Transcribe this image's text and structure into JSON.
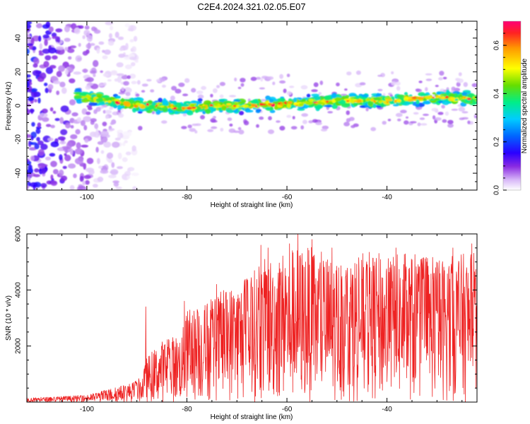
{
  "title": "C2E4.2024.321.02.05.E07",
  "chart_data": [
    {
      "type": "heatmap",
      "xlabel": "Height of straight line (km)",
      "ylabel": "Frequency (Hz)",
      "xlim": [
        -112,
        -22
      ],
      "ylim": [
        -50,
        50
      ],
      "xticks": [
        -100,
        -80,
        -60,
        -40
      ],
      "yticks": [
        -40,
        -20,
        0,
        20,
        40
      ],
      "colorbar": {
        "label": "Normalized spectral amplitude",
        "range": [
          0.0,
          0.7
        ],
        "ticks": [
          0.0,
          0.2,
          0.4,
          0.6
        ],
        "tick_labels": [
          "0.0",
          "0.2",
          "0.4",
          "0.6"
        ]
      },
      "signal_band": {
        "description_centre_hz": [
          [
            -100,
            5
          ],
          [
            -90,
            0
          ],
          [
            -80,
            -1
          ],
          [
            -70,
            0
          ],
          [
            -60,
            1
          ],
          [
            -50,
            3
          ],
          [
            -40,
            3
          ],
          [
            -30,
            5
          ],
          [
            -22,
            4
          ]
        ],
        "half_width_hz": 5,
        "onset_km": -102
      },
      "noise_region_km": [
        -112,
        -98
      ]
    },
    {
      "type": "line",
      "xlabel": "Height of straight line (km)",
      "ylabel": "SNR (10 * v/v)",
      "xlim": [
        -112,
        -22
      ],
      "ylim": [
        0,
        6000
      ],
      "xticks": [
        -100,
        -80,
        -60,
        -40
      ],
      "yticks": [
        2000,
        4000,
        6000
      ],
      "color": "#ee2222",
      "envelope": {
        "x": [
          -112,
          -100,
          -95,
          -91,
          -89,
          -88,
          -85,
          -81,
          -80,
          -76,
          -72,
          -68,
          -64,
          -60,
          -56,
          -50,
          -45,
          -40,
          -35,
          -30,
          -25,
          -22
        ],
        "y": [
          150,
          250,
          500,
          700,
          900,
          1600,
          2200,
          2500,
          3300,
          3600,
          4100,
          4500,
          5200,
          5500,
          5600,
          5100,
          5400,
          5300,
          5300,
          5200,
          5300,
          5500
        ]
      },
      "peaks": [
        {
          "x": -88.2,
          "y": 3400
        },
        {
          "x": -80.5,
          "y": 3600
        },
        {
          "x": -74.1,
          "y": 4200
        },
        {
          "x": -65.2,
          "y": 5600
        },
        {
          "x": -63.8,
          "y": 5500
        },
        {
          "x": -59.5,
          "y": 5650
        },
        {
          "x": -57.8,
          "y": 6000
        },
        {
          "x": -55.0,
          "y": 5800
        },
        {
          "x": -51.0,
          "y": 5500
        },
        {
          "x": -44.8,
          "y": 5300
        },
        {
          "x": -38.2,
          "y": 5500
        },
        {
          "x": -32.0,
          "y": 5000
        },
        {
          "x": -26.8,
          "y": 5500
        },
        {
          "x": -23.0,
          "y": 5650
        }
      ]
    }
  ],
  "colors": {
    "axis": "#000000",
    "line": "#ee2222",
    "background": "#ffffff"
  }
}
